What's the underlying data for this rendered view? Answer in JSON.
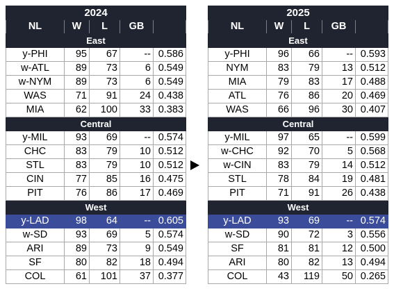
{
  "tables": [
    {
      "year": "2024",
      "columns": [
        "NL",
        "W",
        "L",
        "GB",
        ""
      ],
      "divisions": [
        {
          "name": "East",
          "rows": [
            {
              "team": "y-PHI",
              "w": "95",
              "l": "67",
              "gb": "--",
              "pct": "0.586",
              "highlight": false
            },
            {
              "team": "w-ATL",
              "w": "89",
              "l": "73",
              "gb": "6",
              "pct": "0.549",
              "highlight": false
            },
            {
              "team": "w-NYM",
              "w": "89",
              "l": "73",
              "gb": "6",
              "pct": "0.549",
              "highlight": false
            },
            {
              "team": "WAS",
              "w": "71",
              "l": "91",
              "gb": "24",
              "pct": "0.438",
              "highlight": false
            },
            {
              "team": "MIA",
              "w": "62",
              "l": "100",
              "gb": "33",
              "pct": "0.383",
              "highlight": false
            }
          ]
        },
        {
          "name": "Central",
          "rows": [
            {
              "team": "y-MIL",
              "w": "93",
              "l": "69",
              "gb": "--",
              "pct": "0.574",
              "highlight": false
            },
            {
              "team": "CHC",
              "w": "83",
              "l": "79",
              "gb": "10",
              "pct": "0.512",
              "highlight": false
            },
            {
              "team": "STL",
              "w": "83",
              "l": "79",
              "gb": "10",
              "pct": "0.512",
              "highlight": false
            },
            {
              "team": "CIN",
              "w": "77",
              "l": "85",
              "gb": "16",
              "pct": "0.475",
              "highlight": false
            },
            {
              "team": "PIT",
              "w": "76",
              "l": "86",
              "gb": "17",
              "pct": "0.469",
              "highlight": false
            }
          ]
        },
        {
          "name": "West",
          "rows": [
            {
              "team": "y-LAD",
              "w": "98",
              "l": "64",
              "gb": "--",
              "pct": "0.605",
              "highlight": true
            },
            {
              "team": "w-SD",
              "w": "93",
              "l": "69",
              "gb": "5",
              "pct": "0.574",
              "highlight": false
            },
            {
              "team": "ARI",
              "w": "89",
              "l": "73",
              "gb": "9",
              "pct": "0.549",
              "highlight": false
            },
            {
              "team": "SF",
              "w": "80",
              "l": "82",
              "gb": "18",
              "pct": "0.494",
              "highlight": false
            },
            {
              "team": "COL",
              "w": "61",
              "l": "101",
              "gb": "37",
              "pct": "0.377",
              "highlight": false
            }
          ]
        }
      ]
    },
    {
      "year": "2025",
      "columns": [
        "NL",
        "W",
        "L",
        "GB",
        ""
      ],
      "divisions": [
        {
          "name": "East",
          "rows": [
            {
              "team": "y-PHI",
              "w": "96",
              "l": "66",
              "gb": "--",
              "pct": "0.593",
              "highlight": false
            },
            {
              "team": "NYM",
              "w": "83",
              "l": "79",
              "gb": "13",
              "pct": "0.512",
              "highlight": false
            },
            {
              "team": "MIA",
              "w": "79",
              "l": "83",
              "gb": "17",
              "pct": "0.488",
              "highlight": false
            },
            {
              "team": "ATL",
              "w": "76",
              "l": "86",
              "gb": "20",
              "pct": "0.469",
              "highlight": false
            },
            {
              "team": "WAS",
              "w": "66",
              "l": "96",
              "gb": "30",
              "pct": "0.407",
              "highlight": false
            }
          ]
        },
        {
          "name": "Central",
          "rows": [
            {
              "team": "y-MIL",
              "w": "97",
              "l": "65",
              "gb": "--",
              "pct": "0.599",
              "highlight": false
            },
            {
              "team": "w-CHC",
              "w": "92",
              "l": "70",
              "gb": "5",
              "pct": "0.568",
              "highlight": false
            },
            {
              "team": "w-CIN",
              "w": "83",
              "l": "79",
              "gb": "14",
              "pct": "0.512",
              "highlight": false
            },
            {
              "team": "STL",
              "w": "78",
              "l": "84",
              "gb": "19",
              "pct": "0.481",
              "highlight": false
            },
            {
              "team": "PIT",
              "w": "71",
              "l": "91",
              "gb": "26",
              "pct": "0.438",
              "highlight": false
            }
          ]
        },
        {
          "name": "West",
          "rows": [
            {
              "team": "y-LAD",
              "w": "93",
              "l": "69",
              "gb": "--",
              "pct": "0.574",
              "highlight": true
            },
            {
              "team": "w-SD",
              "w": "90",
              "l": "72",
              "gb": "3",
              "pct": "0.556",
              "highlight": false
            },
            {
              "team": "SF",
              "w": "81",
              "l": "81",
              "gb": "12",
              "pct": "0.500",
              "highlight": false
            },
            {
              "team": "ARI",
              "w": "80",
              "l": "82",
              "gb": "13",
              "pct": "0.494",
              "highlight": false
            },
            {
              "team": "COL",
              "w": "43",
              "l": "119",
              "gb": "50",
              "pct": "0.265",
              "highlight": false
            }
          ]
        }
      ]
    }
  ],
  "arrow_icon": "right-triangle-arrow-icon",
  "colors": {
    "header_bg": "#1f2430",
    "highlight_bg": "#3b4d9a",
    "header_text": "#ffffff"
  }
}
